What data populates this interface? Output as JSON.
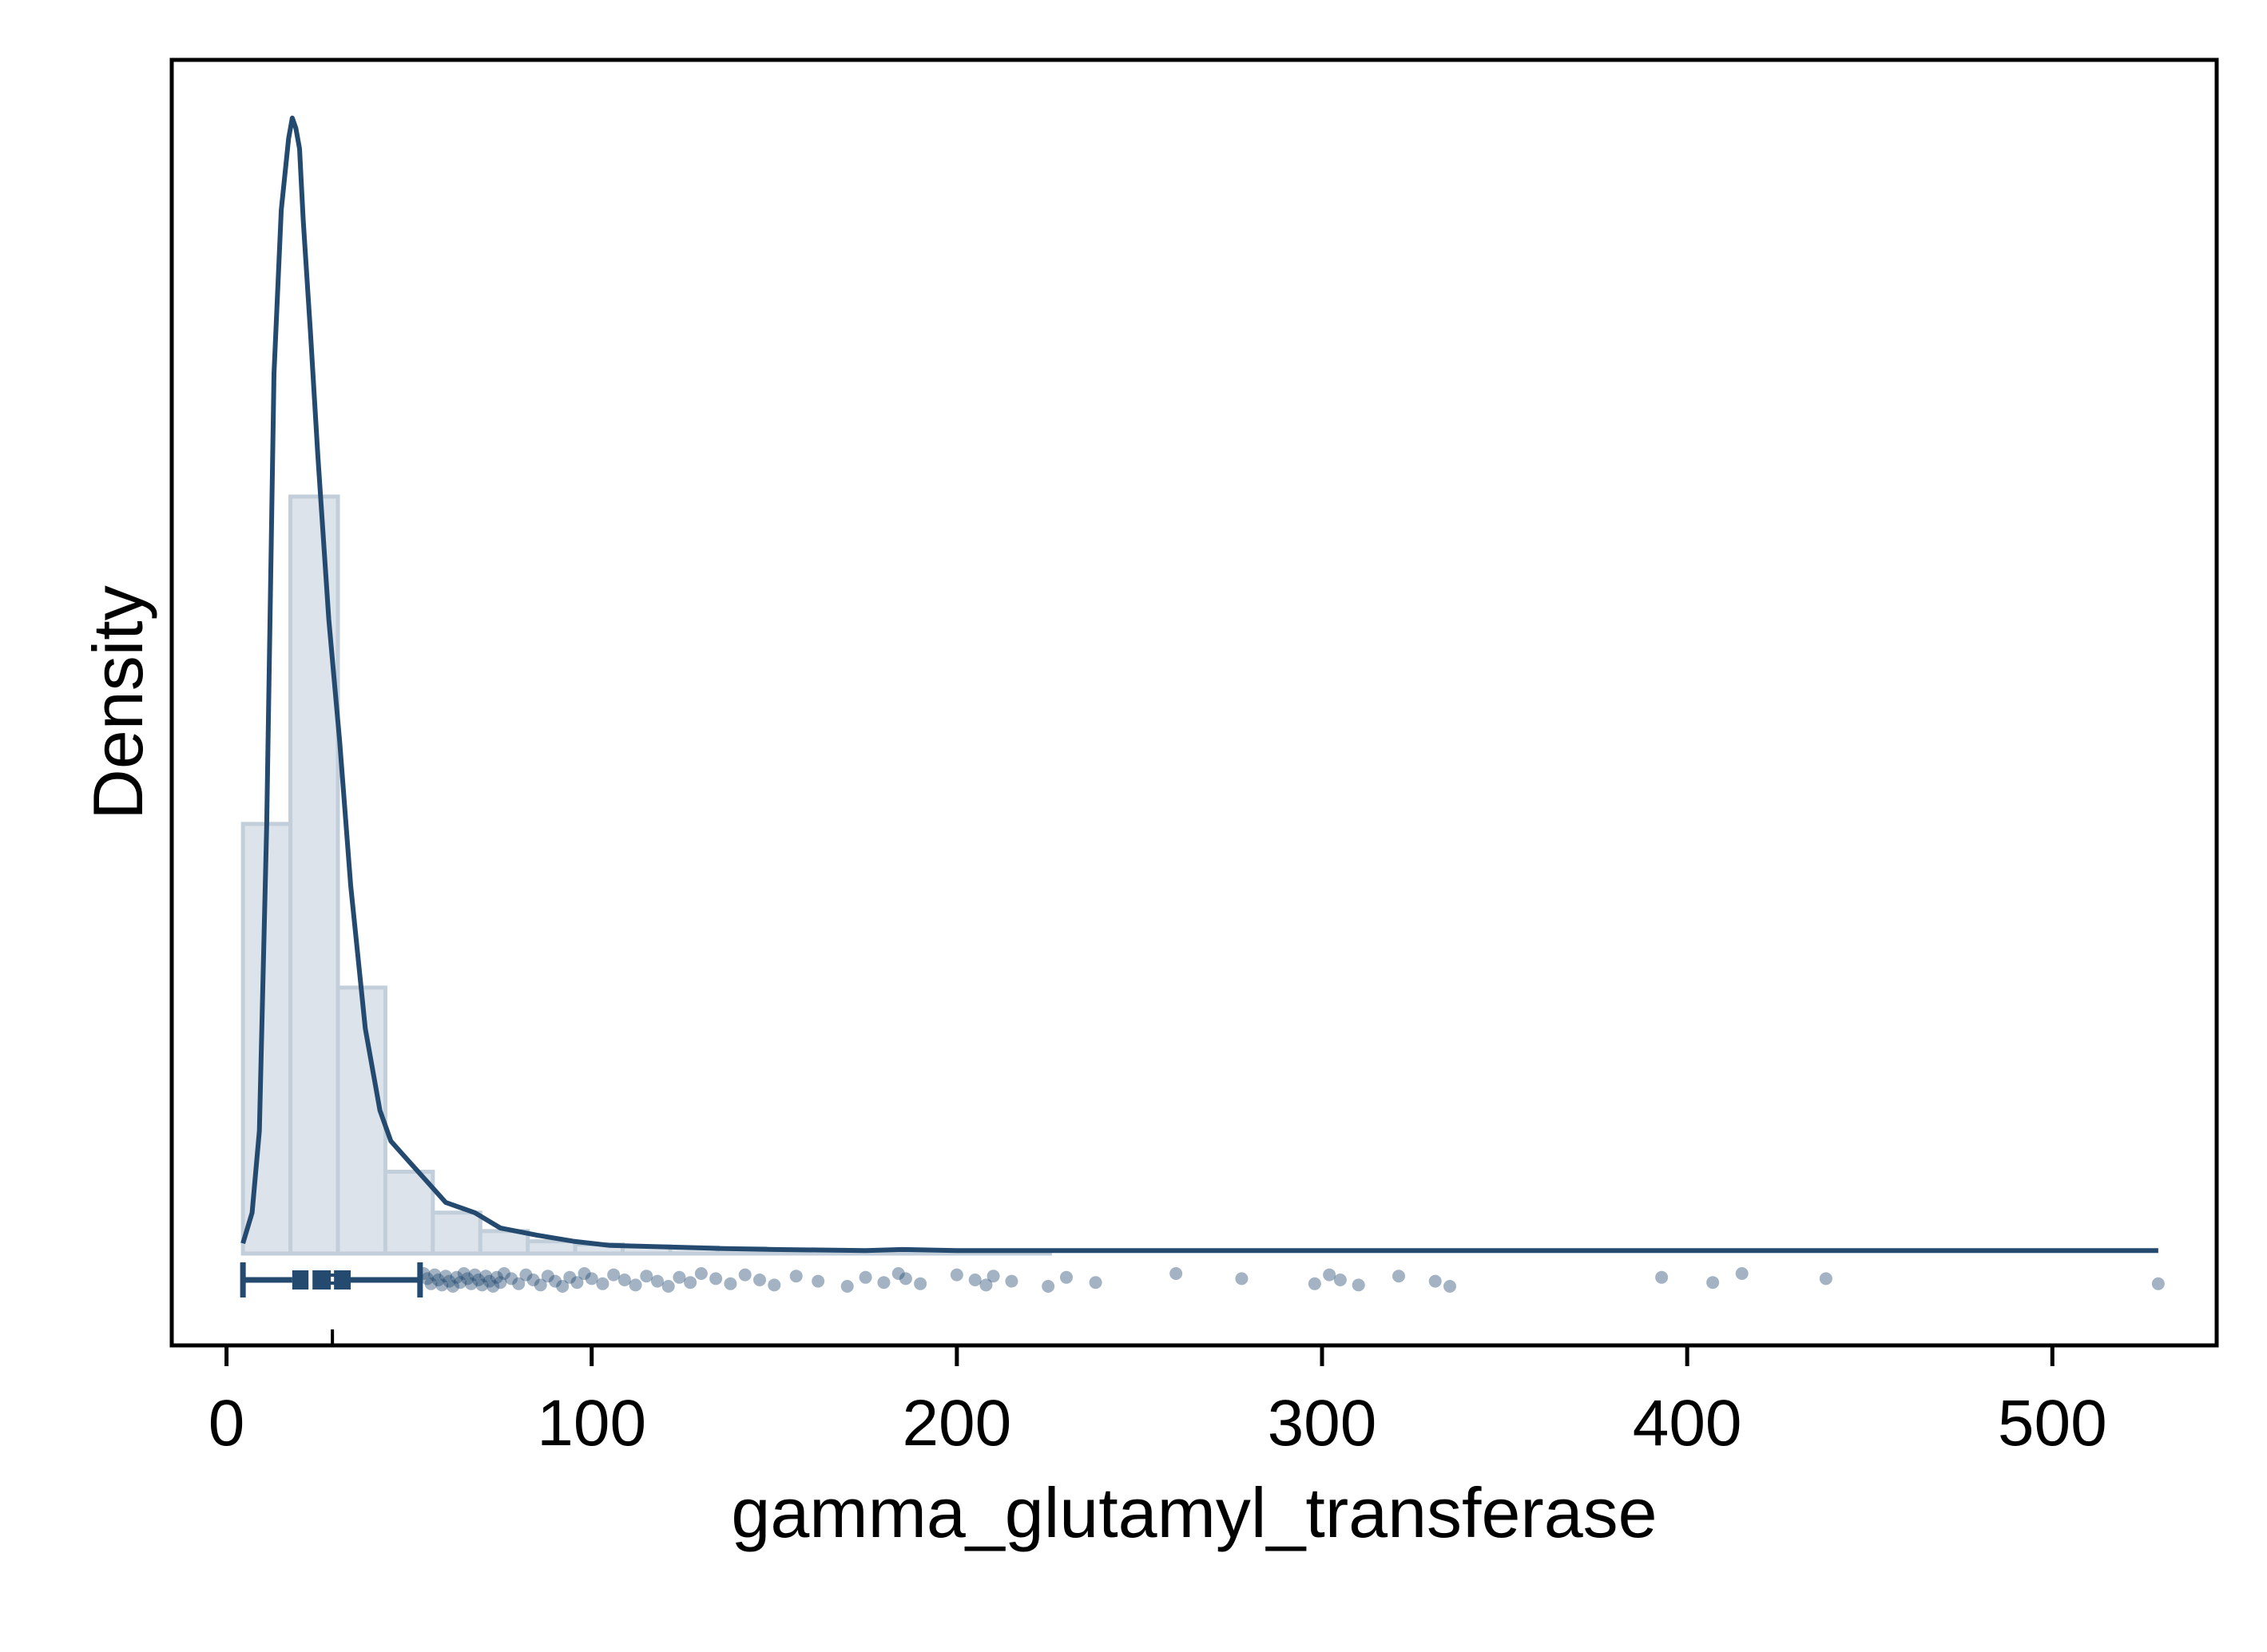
{
  "chart_data": {
    "type": "histogram",
    "title": "",
    "xlabel": "gamma_glutamyl_transferase",
    "ylabel": "Density",
    "xlim": [
      -15,
      545
    ],
    "ylim": [
      0,
      1.12
    ],
    "x_ticks": [
      0,
      100,
      200,
      300,
      400,
      500
    ],
    "y_ticks": [],
    "grid": false,
    "legend": "none",
    "colors": {
      "bar_fill": "#dce3ea",
      "bar_stroke": "#c2ced9",
      "line": "#244a70",
      "point": "#244a70"
    },
    "histogram": {
      "bin_edges": [
        4.5,
        17.5,
        30.5,
        43.5,
        56.5,
        69.5,
        82.5,
        95.5,
        108.5,
        121.5,
        134.5,
        147.5,
        160.5,
        173.5,
        186.5,
        199.5,
        212.5,
        225.5
      ],
      "density": [
        0.42,
        0.74,
        0.26,
        0.08,
        0.04,
        0.022,
        0.012,
        0.009,
        0.007,
        0.006,
        0.005,
        0.004,
        0.003,
        0.0025,
        0.002,
        0.0015,
        0.001
      ]
    },
    "kde": {
      "x": [
        4.5,
        7,
        9,
        11,
        13,
        15,
        17,
        18,
        19,
        20,
        21,
        23,
        25,
        28,
        31,
        34,
        38,
        42,
        45,
        50,
        55,
        60,
        68,
        75,
        85,
        95,
        105,
        115,
        125,
        135,
        150,
        175,
        185,
        200,
        250,
        300,
        400,
        500,
        529
      ],
      "y": [
        0.01,
        0.04,
        0.12,
        0.42,
        0.86,
        1.02,
        1.09,
        1.11,
        1.1,
        1.08,
        1.01,
        0.9,
        0.78,
        0.62,
        0.5,
        0.36,
        0.22,
        0.14,
        0.11,
        0.09,
        0.07,
        0.05,
        0.04,
        0.025,
        0.018,
        0.012,
        0.008,
        0.007,
        0.006,
        0.005,
        0.004,
        0.003,
        0.004,
        0.003,
        0.003,
        0.003,
        0.003,
        0.003,
        0.003
      ]
    },
    "boxplot": {
      "min": 4.5,
      "q1": 18,
      "median": 23,
      "mean": 29,
      "q3": 34,
      "whisker_high": 53,
      "max": 529
    },
    "outliers": [
      54,
      55,
      56,
      57,
      58,
      59,
      60,
      61,
      62,
      63,
      64,
      65,
      66,
      67,
      68,
      69,
      70,
      71,
      72,
      73,
      74,
      75,
      76,
      78,
      80,
      82,
      84,
      86,
      88,
      90,
      92,
      94,
      96,
      98,
      100,
      103,
      106,
      109,
      112,
      115,
      118,
      121,
      124,
      127,
      130,
      134,
      138,
      142,
      146,
      150,
      156,
      162,
      170,
      175,
      180,
      184,
      186,
      190,
      200,
      205,
      208,
      210,
      215,
      225,
      230,
      238,
      260,
      278,
      298,
      302,
      305,
      310,
      321,
      331,
      335,
      393,
      407,
      415,
      438,
      529
    ]
  }
}
